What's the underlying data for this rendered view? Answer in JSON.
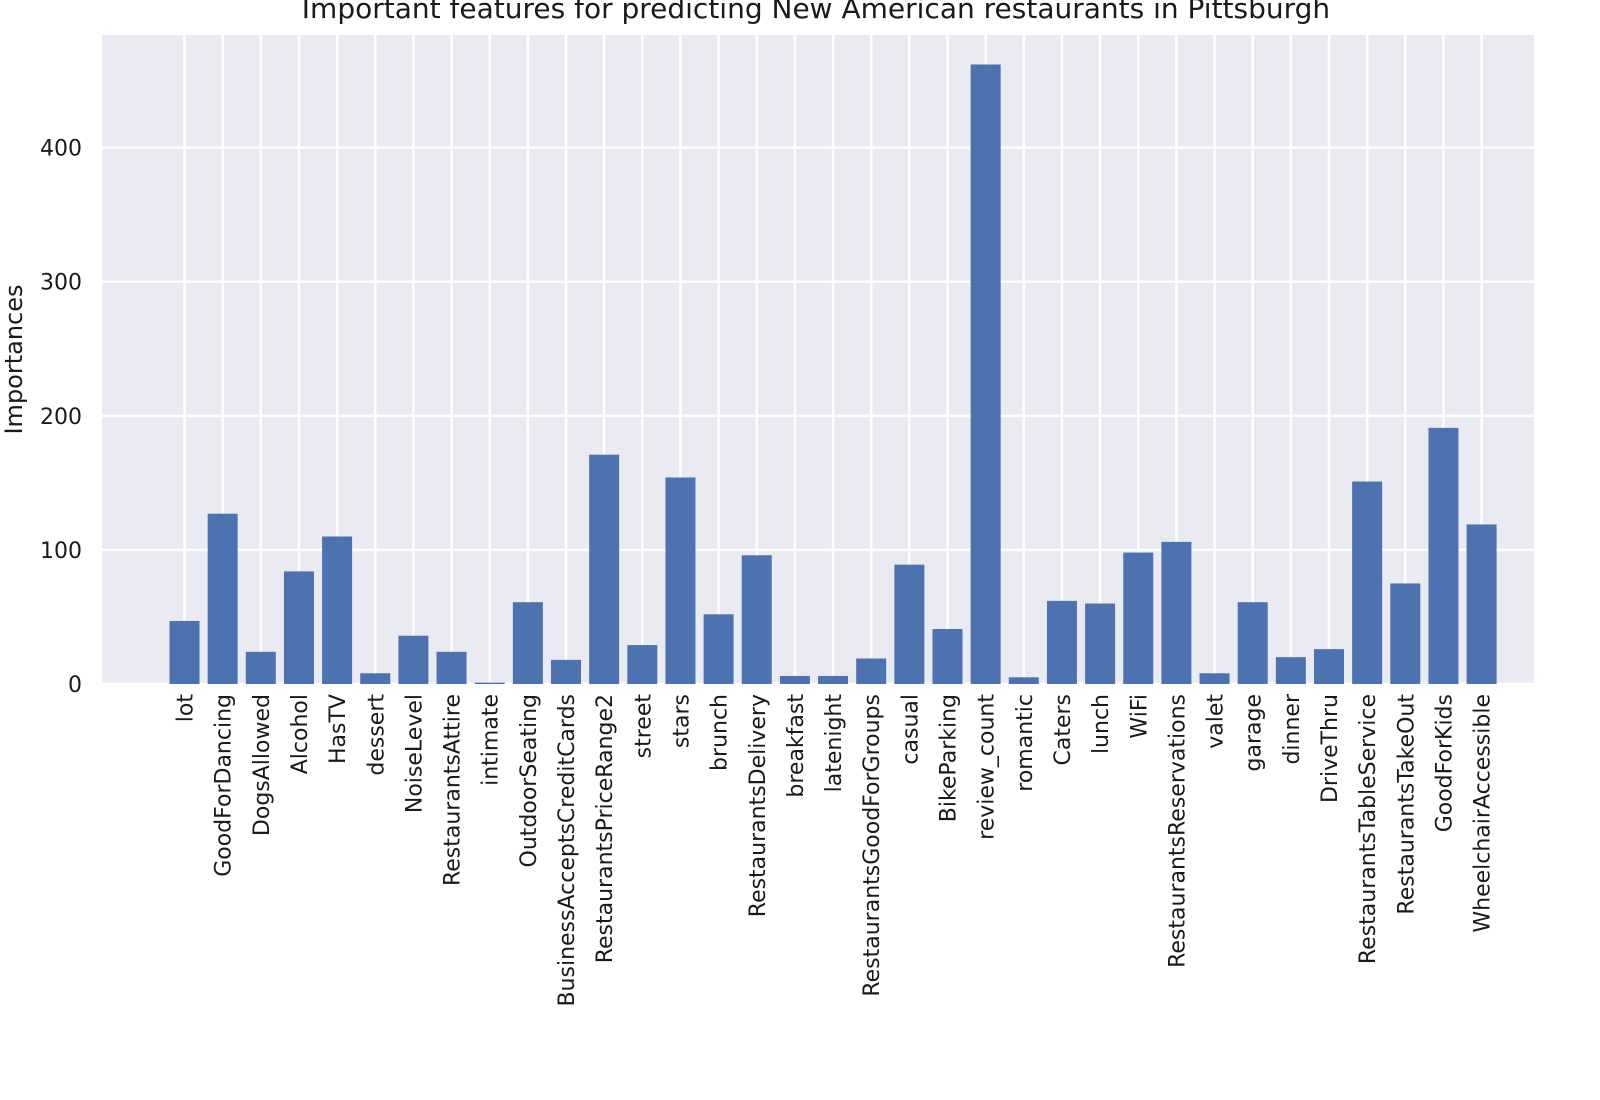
{
  "chart_data": {
    "type": "bar",
    "title": "Important features for predicting New American restaurants in Pittsburgh",
    "xlabel": "",
    "ylabel": "Importances",
    "ylim": [
      0,
      484
    ],
    "yticks": [
      0,
      100,
      200,
      300,
      400
    ],
    "grid": true,
    "bar_color": "#4c72b0",
    "background_color": "#eaeaf2",
    "categories": [
      "lot",
      "GoodForDancing",
      "DogsAllowed",
      "Alcohol",
      "HasTV",
      "dessert",
      "NoiseLevel",
      "RestaurantsAttire",
      "intimate",
      "OutdoorSeating",
      "BusinessAcceptsCreditCards",
      "RestaurantsPriceRange2",
      "street",
      "stars",
      "brunch",
      "RestaurantsDelivery",
      "breakfast",
      "latenight",
      "RestaurantsGoodForGroups",
      "casual",
      "BikeParking",
      "review_count",
      "romantic",
      "Caters",
      "lunch",
      "WiFi",
      "RestaurantsReservations",
      "valet",
      "garage",
      "dinner",
      "DriveThru",
      "RestaurantsTableService",
      "RestaurantsTakeOut",
      "GoodForKids",
      "WheelchairAccessible"
    ],
    "values": [
      47,
      127,
      24,
      84,
      110,
      8,
      36,
      24,
      1,
      61,
      18,
      171,
      29,
      154,
      52,
      96,
      6,
      6,
      19,
      89,
      41,
      462,
      5,
      62,
      60,
      98,
      106,
      8,
      61,
      20,
      26,
      151,
      75,
      191,
      119
    ]
  }
}
